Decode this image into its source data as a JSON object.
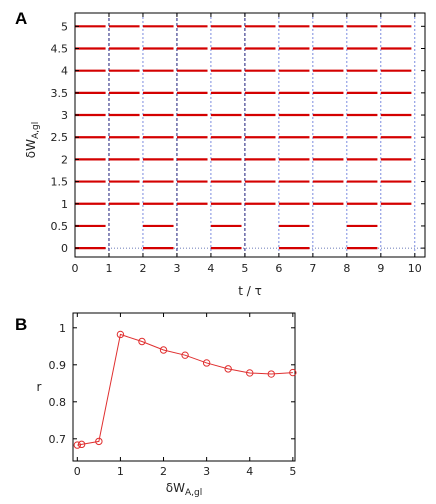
{
  "chart_data": [
    {
      "panel": "A",
      "type": "raster",
      "xlabel": "t / τ",
      "ylabel": "δW_{A,gl}",
      "xlim": [
        0,
        10.3
      ],
      "ylim": [
        -0.2,
        5.3
      ],
      "xticks": [
        "0",
        "1",
        "2",
        "3",
        "4",
        "5",
        "6",
        "7",
        "8",
        "9",
        "10"
      ],
      "yticks": [
        "0",
        "0.5",
        "1",
        "1.5",
        "2",
        "2.5",
        "3",
        "3.5",
        "4",
        "4.5",
        "5"
      ],
      "ytick_values": [
        0,
        0.5,
        1,
        1.5,
        2,
        2.5,
        3,
        3.5,
        4,
        4.5,
        5
      ],
      "vertical_lines_dark": [
        1,
        3,
        5
      ],
      "vertical_lines_blue": [
        2,
        4,
        6,
        7,
        8,
        9,
        10
      ],
      "baseline_dotted_y": 0,
      "series_color": "#d40000",
      "rows": [
        {
          "y": 0,
          "segments": [
            [
              0,
              0.9
            ],
            [
              2,
              2.9
            ],
            [
              4,
              4.9
            ],
            [
              6,
              6.9
            ],
            [
              8,
              8.9
            ]
          ]
        },
        {
          "y": 0.5,
          "segments": [
            [
              0,
              0.9
            ],
            [
              2,
              2.9
            ],
            [
              4,
              4.9
            ],
            [
              6,
              6.9
            ],
            [
              8,
              8.9
            ]
          ]
        },
        {
          "y": 1,
          "segments": [
            [
              0,
              0.9
            ],
            [
              1,
              1.9
            ],
            [
              2,
              2.9
            ],
            [
              3,
              3.9
            ],
            [
              4,
              4.9
            ],
            [
              5,
              5.9
            ],
            [
              6,
              6.9
            ],
            [
              7,
              7.9
            ],
            [
              8,
              8.9
            ],
            [
              9,
              9.9
            ]
          ]
        },
        {
          "y": 1.5,
          "segments": [
            [
              0,
              0.9
            ],
            [
              1,
              1.9
            ],
            [
              2,
              2.9
            ],
            [
              3,
              3.9
            ],
            [
              4,
              4.9
            ],
            [
              5,
              5.9
            ],
            [
              6,
              6.9
            ],
            [
              7,
              7.9
            ],
            [
              8,
              8.9
            ],
            [
              9,
              9.9
            ]
          ]
        },
        {
          "y": 2,
          "segments": [
            [
              0,
              0.9
            ],
            [
              1,
              1.9
            ],
            [
              2,
              2.9
            ],
            [
              3,
              3.9
            ],
            [
              4,
              4.9
            ],
            [
              5,
              5.9
            ],
            [
              6,
              6.9
            ],
            [
              7,
              7.9
            ],
            [
              8,
              8.9
            ],
            [
              9,
              9.9
            ]
          ]
        },
        {
          "y": 2.5,
          "segments": [
            [
              0,
              0.9
            ],
            [
              1,
              1.9
            ],
            [
              2,
              2.9
            ],
            [
              3,
              3.9
            ],
            [
              4,
              4.9
            ],
            [
              5,
              5.9
            ],
            [
              6,
              6.9
            ],
            [
              7,
              7.9
            ],
            [
              8,
              8.9
            ],
            [
              9,
              9.9
            ]
          ]
        },
        {
          "y": 3,
          "segments": [
            [
              0,
              0.9
            ],
            [
              1,
              1.9
            ],
            [
              2,
              2.9
            ],
            [
              3,
              3.9
            ],
            [
              4,
              4.9
            ],
            [
              5,
              5.9
            ],
            [
              6,
              6.9
            ],
            [
              7,
              7.9
            ],
            [
              8,
              8.9
            ],
            [
              9,
              9.9
            ]
          ]
        },
        {
          "y": 3.5,
          "segments": [
            [
              0,
              0.9
            ],
            [
              1,
              1.9
            ],
            [
              2,
              2.9
            ],
            [
              3,
              3.9
            ],
            [
              4,
              4.9
            ],
            [
              5,
              5.9
            ],
            [
              6,
              6.9
            ],
            [
              7,
              7.9
            ],
            [
              8,
              8.9
            ],
            [
              9,
              9.9
            ]
          ]
        },
        {
          "y": 4,
          "segments": [
            [
              0,
              0.9
            ],
            [
              1,
              1.9
            ],
            [
              2,
              2.9
            ],
            [
              3,
              3.9
            ],
            [
              4,
              4.9
            ],
            [
              5,
              5.9
            ],
            [
              6,
              6.9
            ],
            [
              7,
              7.9
            ],
            [
              8,
              8.9
            ],
            [
              9,
              9.9
            ]
          ]
        },
        {
          "y": 4.5,
          "segments": [
            [
              0,
              0.9
            ],
            [
              1,
              1.9
            ],
            [
              2,
              2.9
            ],
            [
              3,
              3.9
            ],
            [
              4,
              4.9
            ],
            [
              5,
              5.9
            ],
            [
              6,
              6.9
            ],
            [
              7,
              7.9
            ],
            [
              8,
              8.9
            ],
            [
              9,
              9.9
            ]
          ]
        },
        {
          "y": 5,
          "segments": [
            [
              0,
              0.9
            ],
            [
              1,
              1.9
            ],
            [
              2,
              2.9
            ],
            [
              3,
              3.9
            ],
            [
              4,
              4.9
            ],
            [
              5,
              5.9
            ],
            [
              6,
              6.9
            ],
            [
              7,
              7.9
            ],
            [
              8,
              8.9
            ],
            [
              9,
              9.9
            ]
          ]
        }
      ]
    },
    {
      "panel": "B",
      "type": "line",
      "xlabel": "δW_{A,gl}",
      "ylabel": "r",
      "xlim": [
        -0.1,
        5.05
      ],
      "ylim": [
        0.64,
        1.04
      ],
      "xticks": [
        "0",
        "1",
        "2",
        "3",
        "4",
        "5"
      ],
      "xtick_values": [
        0,
        1,
        2,
        3,
        4,
        5
      ],
      "yticks": [
        "0.7",
        "0.8",
        "0.9",
        "1"
      ],
      "ytick_values": [
        0.7,
        0.8,
        0.9,
        1.0
      ],
      "marker": "open-circle",
      "series_color": "#e03030",
      "x": [
        0,
        0.1,
        0.5,
        1.0,
        1.5,
        2.0,
        2.5,
        3.0,
        3.5,
        4.0,
        4.5,
        5.0
      ],
      "y": [
        0.683,
        0.685,
        0.693,
        0.982,
        0.963,
        0.94,
        0.926,
        0.905,
        0.889,
        0.878,
        0.875,
        0.879
      ]
    }
  ]
}
